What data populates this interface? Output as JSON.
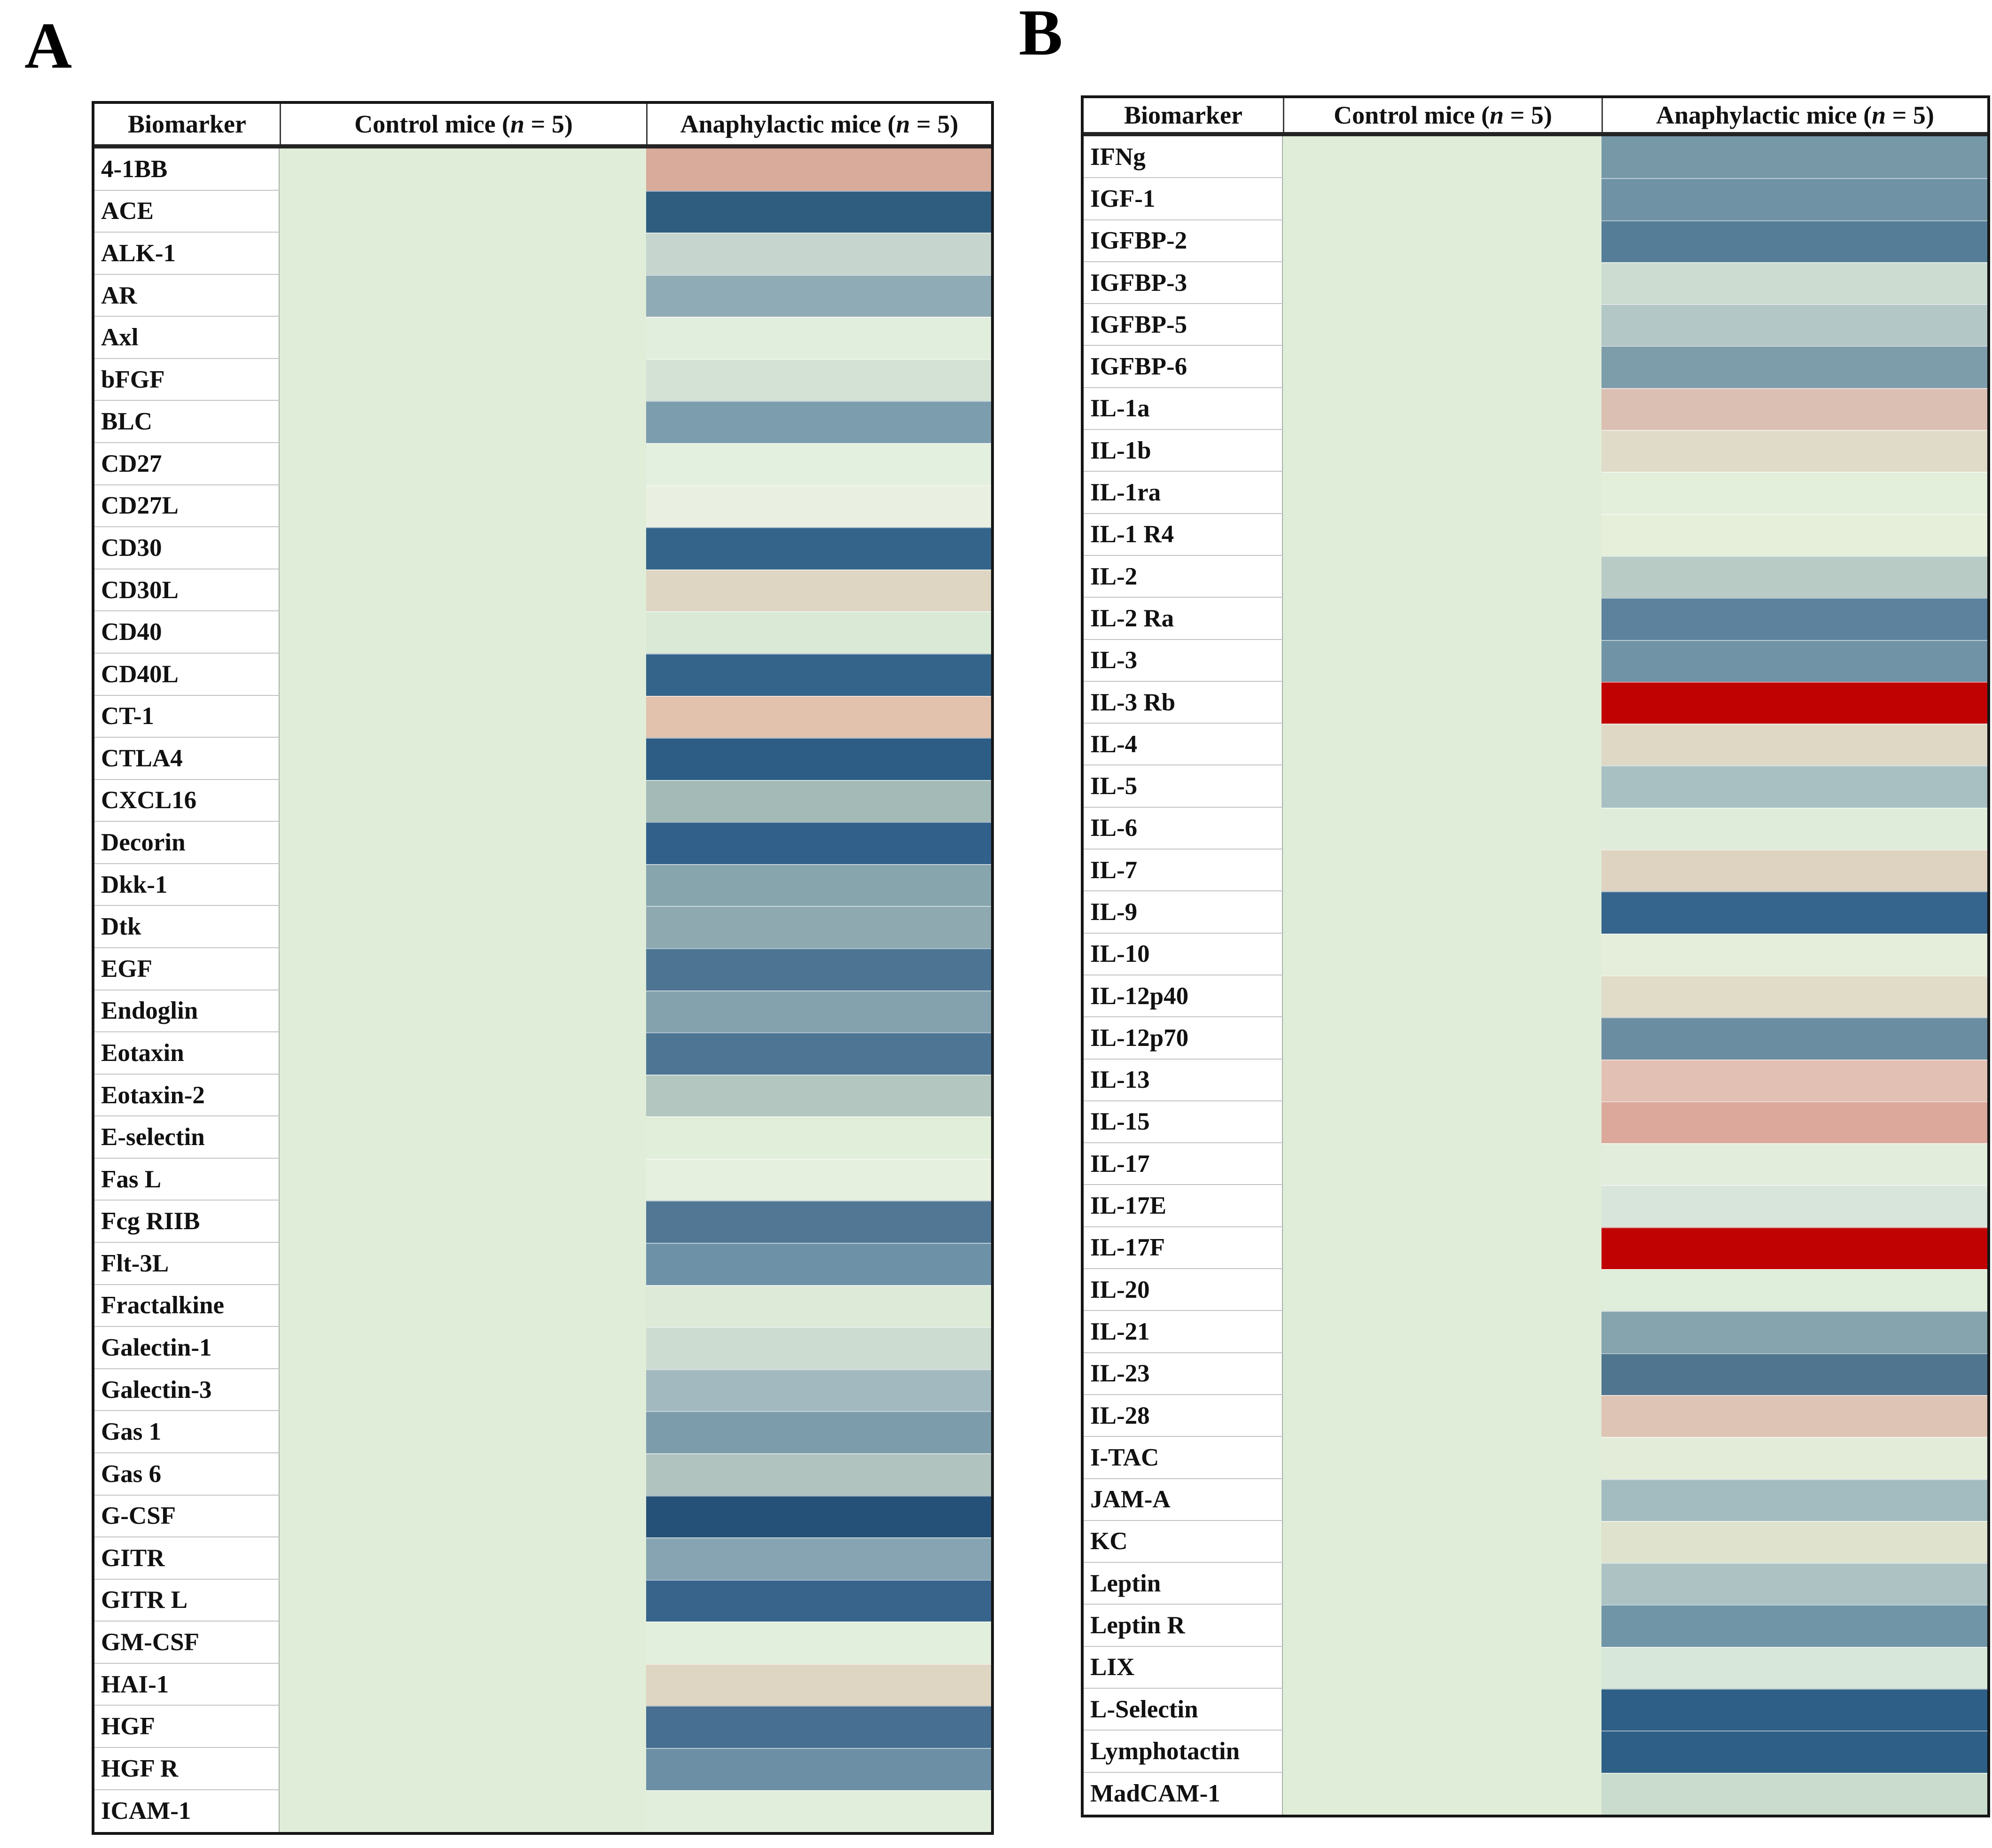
{
  "figure": {
    "panel_a_label": "A",
    "panel_b_label": "B"
  },
  "header": {
    "biomarker": "Biomarker",
    "control_prefix": "Control mice (",
    "control_n": "n",
    "control_suffix": " = 5)",
    "anaphylactic_prefix": "Anaphylactic mice (",
    "anaphylactic_n": "n",
    "anaphylactic_suffix": " = 5)"
  },
  "colors": {
    "control_fill": "#e0edd9",
    "table_border": "#161616",
    "strong_red": "#c00202"
  },
  "chart_data": [
    {
      "type": "heatmap",
      "panel": "A",
      "columns": [
        "Biomarker",
        "Control mice (n = 5)",
        "Anaphylactic mice (n = 5)"
      ],
      "legend": "cell color encodes relative biomarker level (blue = high in anaphylactic mice, red/pink = low, pale green = unchanged); no numeric scale shown",
      "control_color": "#e0edd9",
      "rows": [
        {
          "name": "4-1BB",
          "anaphylactic_color": "#d8ab9a"
        },
        {
          "name": "ACE",
          "anaphylactic_color": "#2f5d80"
        },
        {
          "name": "ALK-1",
          "anaphylactic_color": "#c6d5cd"
        },
        {
          "name": "AR",
          "anaphylactic_color": "#8fabb5"
        },
        {
          "name": "Axl",
          "anaphylactic_color": "#e2eedd"
        },
        {
          "name": "bFGF",
          "anaphylactic_color": "#d3e2d4"
        },
        {
          "name": "BLC",
          "anaphylactic_color": "#7c9dad"
        },
        {
          "name": "CD27",
          "anaphylactic_color": "#e3efdf"
        },
        {
          "name": "CD27L",
          "anaphylactic_color": "#eaf0e1"
        },
        {
          "name": "CD30",
          "anaphylactic_color": "#34648a"
        },
        {
          "name": "CD30L",
          "anaphylactic_color": "#ded6c3"
        },
        {
          "name": "CD40",
          "anaphylactic_color": "#d9e9d6"
        },
        {
          "name": "CD40L",
          "anaphylactic_color": "#34648a"
        },
        {
          "name": "CT-1",
          "anaphylactic_color": "#e2c2ad"
        },
        {
          "name": "CTLA4",
          "anaphylactic_color": "#2d5d85"
        },
        {
          "name": "CXCL16",
          "anaphylactic_color": "#a3bab6"
        },
        {
          "name": "Decorin",
          "anaphylactic_color": "#31608a"
        },
        {
          "name": "Dkk-1",
          "anaphylactic_color": "#87a5ad"
        },
        {
          "name": "Dtk",
          "anaphylactic_color": "#8fa9b0"
        },
        {
          "name": "EGF",
          "anaphylactic_color": "#4d7593"
        },
        {
          "name": "Endoglin",
          "anaphylactic_color": "#84a2ad"
        },
        {
          "name": "Eotaxin",
          "anaphylactic_color": "#4e7694"
        },
        {
          "name": "Eotaxin-2",
          "anaphylactic_color": "#b3c7c0"
        },
        {
          "name": "E-selectin",
          "anaphylactic_color": "#e1eeda"
        },
        {
          "name": "Fas L",
          "anaphylactic_color": "#e6f0de"
        },
        {
          "name": "Fcg RIIB",
          "anaphylactic_color": "#527795"
        },
        {
          "name": "Flt-3L",
          "anaphylactic_color": "#6d92a8"
        },
        {
          "name": "Fractalkine",
          "anaphylactic_color": "#dcead7"
        },
        {
          "name": "Galectin-1",
          "anaphylactic_color": "#cddcd1"
        },
        {
          "name": "Galectin-3",
          "anaphylactic_color": "#a2b9bf"
        },
        {
          "name": "Gas 1",
          "anaphylactic_color": "#7d9cab"
        },
        {
          "name": "Gas 6",
          "anaphylactic_color": "#b0c3bf"
        },
        {
          "name": "G-CSF",
          "anaphylactic_color": "#255178"
        },
        {
          "name": "GITR",
          "anaphylactic_color": "#87a4b2"
        },
        {
          "name": "GITR L",
          "anaphylactic_color": "#38648c"
        },
        {
          "name": "GM-CSF",
          "anaphylactic_color": "#e1efdc"
        },
        {
          "name": "HAI-1",
          "anaphylactic_color": "#ded5c2"
        },
        {
          "name": "HGF",
          "anaphylactic_color": "#476f92"
        },
        {
          "name": "HGF R",
          "anaphylactic_color": "#6c8fa5"
        },
        {
          "name": "ICAM-1",
          "anaphylactic_color": "#e0eedb"
        }
      ]
    },
    {
      "type": "heatmap",
      "panel": "B",
      "columns": [
        "Biomarker",
        "Control mice (n = 5)",
        "Anaphylactic mice (n = 5)"
      ],
      "legend": "cell color encodes relative biomarker level (blue = high in anaphylactic mice, red/pink = low, pale green = unchanged); no numeric scale shown",
      "control_color": "#e0edd9",
      "rows": [
        {
          "name": "IFNg",
          "anaphylactic_color": "#7799a7"
        },
        {
          "name": "IGF-1",
          "anaphylactic_color": "#6f93a4"
        },
        {
          "name": "IGFBP-2",
          "anaphylactic_color": "#567d97"
        },
        {
          "name": "IGFBP-3",
          "anaphylactic_color": "#ccdcd1"
        },
        {
          "name": "IGFBP-5",
          "anaphylactic_color": "#b3c7c6"
        },
        {
          "name": "IGFBP-6",
          "anaphylactic_color": "#7e9dab"
        },
        {
          "name": "IL-1a",
          "anaphylactic_color": "#dbbfb2"
        },
        {
          "name": "IL-1b",
          "anaphylactic_color": "#e0dbc9"
        },
        {
          "name": "IL-1ra",
          "anaphylactic_color": "#e3eedb"
        },
        {
          "name": "IL-1 R4",
          "anaphylactic_color": "#e6efda"
        },
        {
          "name": "IL-2",
          "anaphylactic_color": "#b8cbc5"
        },
        {
          "name": "IL-2 Ra",
          "anaphylactic_color": "#5c829d"
        },
        {
          "name": "IL-3",
          "anaphylactic_color": "#7093a6"
        },
        {
          "name": "IL-3 Rb",
          "anaphylactic_color": "#c00202"
        },
        {
          "name": "IL-4",
          "anaphylactic_color": "#ded8c5"
        },
        {
          "name": "IL-5",
          "anaphylactic_color": "#a9c0c2"
        },
        {
          "name": "IL-6",
          "anaphylactic_color": "#e0ecda"
        },
        {
          "name": "IL-7",
          "anaphylactic_color": "#ddd3c0"
        },
        {
          "name": "IL-9",
          "anaphylactic_color": "#35648c"
        },
        {
          "name": "IL-10",
          "anaphylactic_color": "#e4eedb"
        },
        {
          "name": "IL-12p40",
          "anaphylactic_color": "#e0dcc8"
        },
        {
          "name": "IL-12p70",
          "anaphylactic_color": "#6b8da1"
        },
        {
          "name": "IL-13",
          "anaphylactic_color": "#e3c0b4"
        },
        {
          "name": "IL-15",
          "anaphylactic_color": "#dca89c"
        },
        {
          "name": "IL-17",
          "anaphylactic_color": "#e2eedb"
        },
        {
          "name": "IL-17E",
          "anaphylactic_color": "#d8e5da"
        },
        {
          "name": "IL-17F",
          "anaphylactic_color": "#c00202"
        },
        {
          "name": "IL-20",
          "anaphylactic_color": "#dfeeda"
        },
        {
          "name": "IL-21",
          "anaphylactic_color": "#86a4ae"
        },
        {
          "name": "IL-23",
          "anaphylactic_color": "#50758f"
        },
        {
          "name": "IL-28",
          "anaphylactic_color": "#dec4b4"
        },
        {
          "name": "I-TAC",
          "anaphylactic_color": "#e2ecd9"
        },
        {
          "name": "JAM-A",
          "anaphylactic_color": "#a2bcc0"
        },
        {
          "name": "KC",
          "anaphylactic_color": "#dfe2cd"
        },
        {
          "name": "Leptin",
          "anaphylactic_color": "#adc3c3"
        },
        {
          "name": "Leptin R",
          "anaphylactic_color": "#7095a7"
        },
        {
          "name": "LIX",
          "anaphylactic_color": "#d7e8da"
        },
        {
          "name": "L-Selectin",
          "anaphylactic_color": "#2e5f86"
        },
        {
          "name": "Lymphotactin",
          "anaphylactic_color": "#2e5f86"
        },
        {
          "name": "MadCAM-1",
          "anaphylactic_color": "#c9dccd"
        }
      ]
    }
  ]
}
